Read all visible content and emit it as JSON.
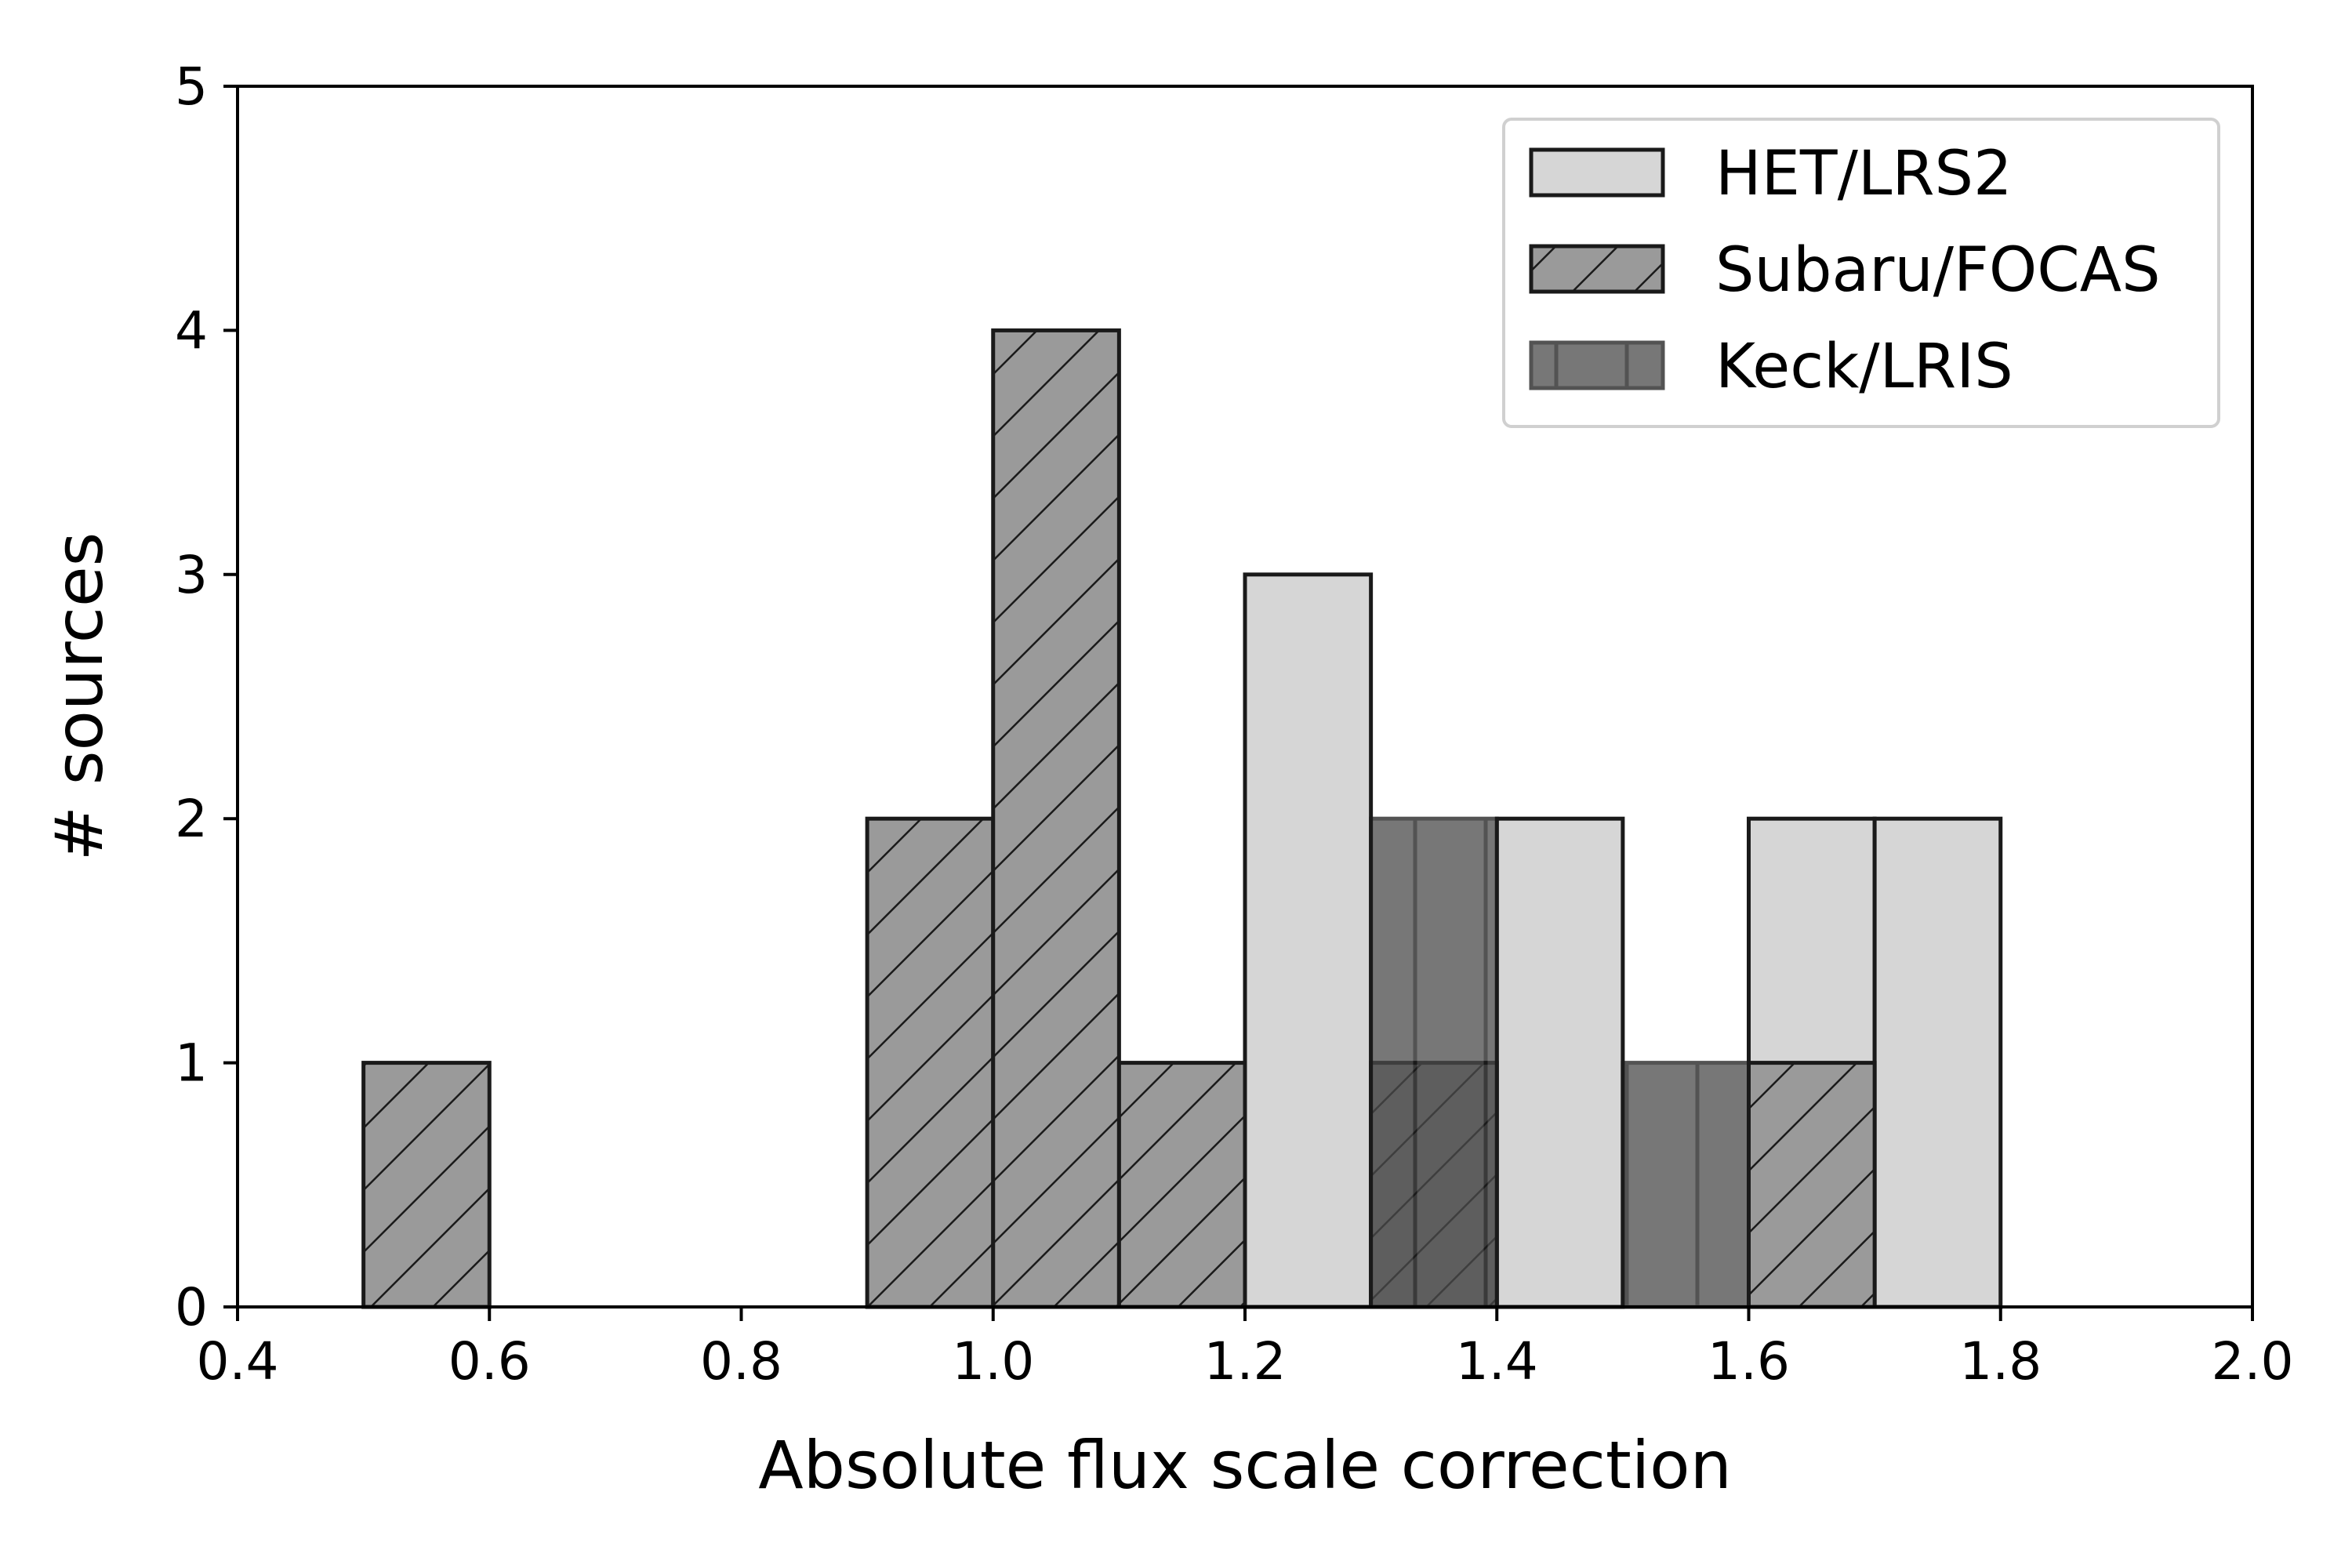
{
  "chart_data": {
    "type": "bar",
    "subtype": "histogram",
    "title": "",
    "xlabel": "Absolute flux scale correction",
    "ylabel": "# sources",
    "xlim": [
      0.4,
      2.0
    ],
    "ylim": [
      0,
      5
    ],
    "xticks": [
      "0.4",
      "0.6",
      "0.8",
      "1.0",
      "1.2",
      "1.4",
      "1.6",
      "1.8",
      "2.0"
    ],
    "yticks": [
      "0",
      "1",
      "2",
      "3",
      "4",
      "5"
    ],
    "grid": false,
    "legend_position": "top-right",
    "series": [
      {
        "name": "HET/LRS2",
        "color": "#d6d6d6",
        "hatch": "none",
        "bins": [
          {
            "x0": 1.2,
            "x1": 1.3,
            "count": 3
          },
          {
            "x0": 1.4,
            "x1": 1.5,
            "count": 2
          },
          {
            "x0": 1.6,
            "x1": 1.7,
            "count": 2
          },
          {
            "x0": 1.7,
            "x1": 1.8,
            "count": 2
          }
        ]
      },
      {
        "name": "Subaru/FOCAS",
        "color": "#9a9a9a",
        "hatch": "diagonal",
        "bins": [
          {
            "x0": 0.5,
            "x1": 0.6,
            "count": 1
          },
          {
            "x0": 0.9,
            "x1": 1.0,
            "count": 2
          },
          {
            "x0": 1.0,
            "x1": 1.1,
            "count": 4
          },
          {
            "x0": 1.1,
            "x1": 1.2,
            "count": 1
          },
          {
            "x0": 1.3,
            "x1": 1.4,
            "count": 1
          },
          {
            "x0": 1.6,
            "x1": 1.7,
            "count": 1
          }
        ]
      },
      {
        "name": "Keck/LRIS",
        "color": "#4a4a4a",
        "hatch": "vertical",
        "bins": [
          {
            "x0": 1.3,
            "x1": 1.4,
            "count": 2
          },
          {
            "x0": 1.5,
            "x1": 1.6,
            "count": 1
          }
        ]
      }
    ]
  }
}
